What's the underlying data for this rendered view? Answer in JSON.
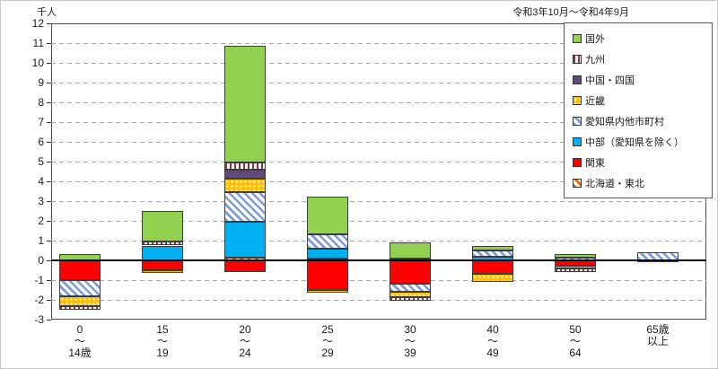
{
  "chart_data": {
    "type": "bar",
    "stacked": true,
    "unit_label": "千人",
    "period_label": "令和3年10月～令和4年9月",
    "ylim": [
      -3,
      12
    ],
    "ytick_step": 1,
    "grid": true,
    "legend_position": "top-right",
    "categories": [
      "0〜14歳",
      "15〜19",
      "20〜24",
      "25〜29",
      "30〜39",
      "40〜49",
      "50〜64",
      "65歳以上"
    ],
    "category_label_lines": [
      [
        "0",
        "〜",
        "14歳"
      ],
      [
        "15",
        "〜",
        "19"
      ],
      [
        "20",
        "〜",
        "24"
      ],
      [
        "25",
        "〜",
        "29"
      ],
      [
        "30",
        "〜",
        "39"
      ],
      [
        "40",
        "〜",
        "49"
      ],
      [
        "50",
        "〜",
        "64"
      ],
      [
        "65歳",
        "以上"
      ]
    ],
    "series": [
      {
        "name": "北海道・東北",
        "pattern": "stripes-diagonal",
        "fg": "#E36C0A",
        "bg": "#FFFFFF",
        "values": [
          0,
          0,
          0.15,
          0.1,
          0,
          0,
          0,
          0
        ]
      },
      {
        "name": "関東",
        "pattern": "solid",
        "fg": "#FF0000",
        "bg": "#FF0000",
        "values": [
          -1.0,
          -0.5,
          -0.6,
          -1.5,
          -1.2,
          -0.7,
          -0.25,
          -0.1
        ]
      },
      {
        "name": "中部（愛知県を除く）",
        "pattern": "solid",
        "fg": "#00B0F0",
        "bg": "#00B0F0",
        "values": [
          0,
          0.75,
          1.8,
          0.5,
          0.1,
          0.2,
          0,
          0
        ]
      },
      {
        "name": "愛知県内他市町村",
        "pattern": "stripes-diagonal",
        "fg": "#7C9CDB",
        "bg": "#FFFFFF",
        "values": [
          -0.8,
          0,
          1.5,
          0.7,
          -0.4,
          0.3,
          0.15,
          0.4
        ]
      },
      {
        "name": "近畿",
        "pattern": "dots",
        "fg": "#FFC000",
        "bg": "#FFFFFF",
        "values": [
          -0.5,
          -0.15,
          0.7,
          -0.15,
          -0.25,
          -0.4,
          -0.15,
          0
        ]
      },
      {
        "name": "中国・四国",
        "pattern": "solid",
        "fg": "#604A7B",
        "bg": "#604A7B",
        "values": [
          0,
          0,
          0.45,
          0,
          0,
          0,
          0,
          0
        ]
      },
      {
        "name": "九州",
        "pattern": "stripes-vertical",
        "fg": "#953735",
        "bg": "#FFFFFF",
        "values": [
          -0.2,
          0.2,
          0.35,
          0,
          -0.2,
          0,
          -0.2,
          0
        ]
      },
      {
        "name": "国外",
        "pattern": "solid",
        "fg": "#92D050",
        "bg": "#92D050",
        "values": [
          0.3,
          1.55,
          5.9,
          1.95,
          0.8,
          0.25,
          0.15,
          0
        ]
      }
    ]
  }
}
